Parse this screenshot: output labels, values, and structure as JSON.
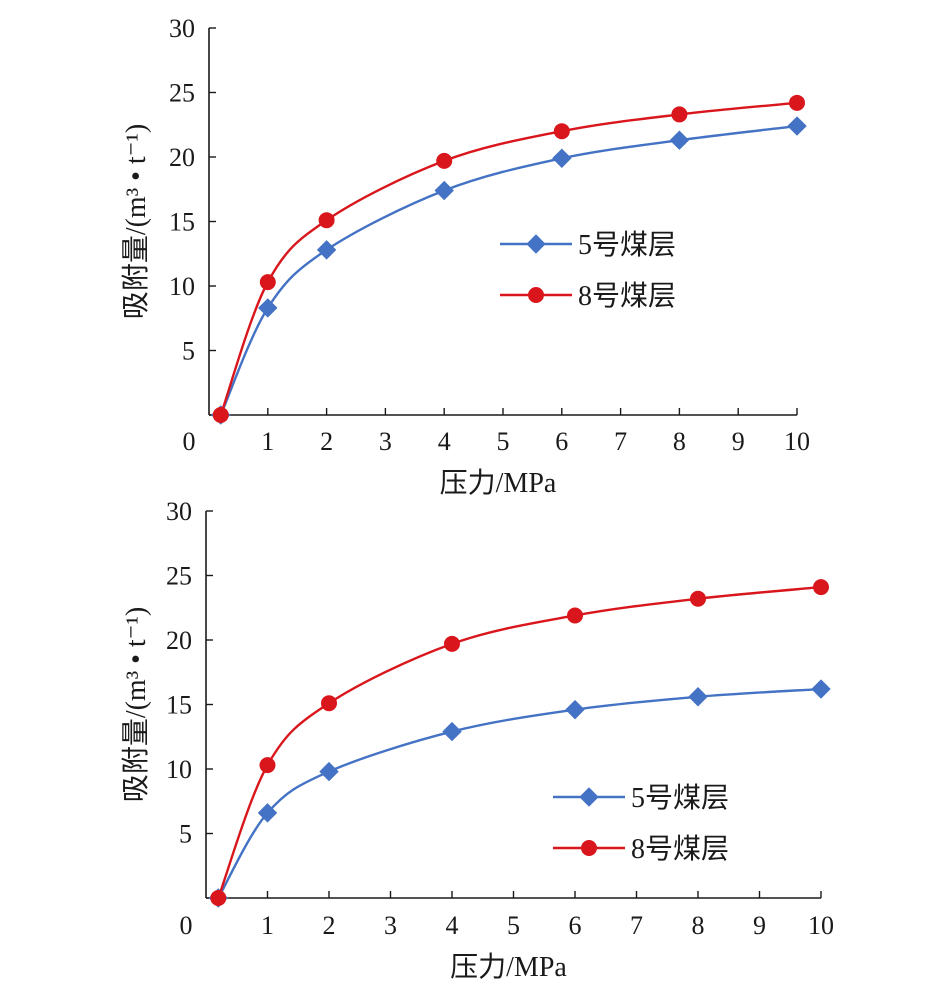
{
  "chart_data": [
    {
      "type": "line",
      "title": "",
      "xlabel": "压力/MPa",
      "ylabel": "吸附量/(m³ • t⁻¹)",
      "xlim": [
        0,
        10
      ],
      "ylim": [
        0,
        30
      ],
      "xticks": [
        "0",
        "1",
        "2",
        "3",
        "4",
        "5",
        "6",
        "7",
        "8",
        "9",
        "10"
      ],
      "yticks": [
        "0",
        "5",
        "10",
        "15",
        "20",
        "25",
        "30"
      ],
      "grid": false,
      "legend_position": "center-right",
      "series": [
        {
          "name": "5号煤层",
          "color": "#4472c4",
          "marker": "diamond",
          "x": [
            0.2,
            1,
            2,
            4,
            6,
            8,
            10
          ],
          "y": [
            0,
            8.3,
            12.8,
            17.4,
            19.9,
            21.3,
            22.4
          ]
        },
        {
          "name": "8号煤层",
          "color": "#d9161c",
          "marker": "circle",
          "x": [
            0.2,
            1,
            2,
            4,
            6,
            8,
            10
          ],
          "y": [
            0,
            10.3,
            15.1,
            19.7,
            22.0,
            23.3,
            24.2
          ]
        }
      ]
    },
    {
      "type": "line",
      "title": "",
      "xlabel": "压力/MPa",
      "ylabel": "吸附量/(m³ • t⁻¹)",
      "xlim": [
        0,
        10
      ],
      "ylim": [
        0,
        30
      ],
      "xticks": [
        "0",
        "1",
        "2",
        "3",
        "4",
        "5",
        "6",
        "7",
        "8",
        "9",
        "10"
      ],
      "yticks": [
        "0",
        "5",
        "10",
        "15",
        "20",
        "25",
        "30"
      ],
      "grid": false,
      "legend_position": "lower-right",
      "series": [
        {
          "name": "5号煤层",
          "color": "#4472c4",
          "marker": "diamond",
          "x": [
            0.2,
            1,
            2,
            4,
            6,
            8,
            10
          ],
          "y": [
            0,
            6.6,
            9.8,
            12.9,
            14.6,
            15.6,
            16.2
          ]
        },
        {
          "name": "8号煤层",
          "color": "#d9161c",
          "marker": "circle",
          "x": [
            0.2,
            1,
            2,
            4,
            6,
            8,
            10
          ],
          "y": [
            0,
            10.3,
            15.1,
            19.7,
            21.9,
            23.2,
            24.1
          ]
        }
      ]
    }
  ]
}
